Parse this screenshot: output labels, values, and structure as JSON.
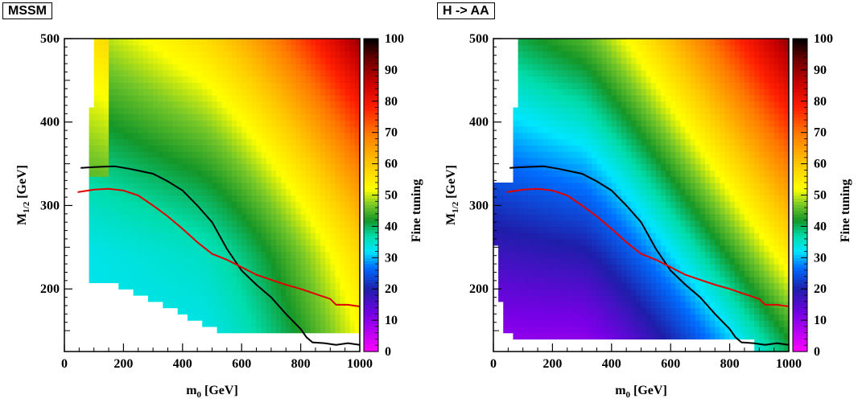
{
  "chart_data": [
    {
      "type": "heatmap",
      "tag": "MSSM",
      "xlabel": "m",
      "xlabel_sub": "0",
      "xlabel_unit": " [GeV]",
      "ylabel": "M",
      "ylabel_sub": "1/2",
      "ylabel_unit": " [GeV]",
      "xlim": [
        0,
        1000
      ],
      "ylim": [
        125,
        500
      ],
      "xticks": [
        0,
        200,
        400,
        600,
        800,
        1000
      ],
      "yticks": [
        200,
        300,
        400,
        500
      ],
      "colorbar_label": "Fine tuning",
      "colorbar_range": [
        0,
        100
      ],
      "colorbar_ticks": [
        0,
        10,
        20,
        30,
        40,
        50,
        60,
        70,
        80,
        90,
        100
      ],
      "heatmap_description": "Fine tuning minimum ~33 near m0 200-400, M1/2 200-260; increases to ~60 at large M1/2 and ~80-90 at m0~1000, M1/2~500",
      "series": [
        {
          "color": "#000000",
          "x": [
            55,
            100,
            170,
            220,
            260,
            300,
            350,
            400,
            450,
            500,
            550,
            600,
            650,
            700,
            750,
            800,
            820,
            840,
            880,
            920,
            960,
            1000
          ],
          "y": [
            345,
            346,
            347,
            344,
            341,
            338,
            329,
            318,
            300,
            280,
            248,
            222,
            205,
            190,
            170,
            152,
            142,
            136,
            135,
            133,
            135,
            133
          ]
        },
        {
          "color": "#e00000",
          "x": [
            45,
            100,
            150,
            200,
            250,
            300,
            350,
            400,
            450,
            500,
            550,
            600,
            650,
            700,
            750,
            800,
            850,
            900,
            920,
            960,
            1000
          ],
          "y": [
            316,
            319,
            320,
            318,
            312,
            300,
            287,
            272,
            256,
            242,
            235,
            226,
            217,
            211,
            205,
            200,
            194,
            188,
            181,
            181,
            179
          ]
        }
      ]
    },
    {
      "type": "heatmap",
      "tag": "H -> AA",
      "xlabel": "m",
      "xlabel_sub": "0",
      "xlabel_unit": " [GeV]",
      "ylabel": "M",
      "ylabel_sub": "1/2",
      "ylabel_unit": " [GeV]",
      "xlim": [
        0,
        1000
      ],
      "ylim": [
        125,
        500
      ],
      "xticks": [
        0,
        200,
        400,
        600,
        800,
        1000
      ],
      "yticks": [
        200,
        300,
        400,
        500
      ],
      "colorbar_label": "Fine tuning",
      "colorbar_range": [
        0,
        100
      ],
      "colorbar_ticks": [
        0,
        10,
        20,
        30,
        40,
        50,
        60,
        70,
        80,
        90,
        100
      ],
      "heatmap_description": "Fine tuning minimum ~8-12 near m0 50-200, M1/2 130-180 (purple); dark blue ~18-22 region up to M1/2~280; increases to ~60 at large M1/2 and ~80-90 at m0~1000, M1/2~500",
      "series": [
        {
          "color": "#000000",
          "x": [
            55,
            100,
            170,
            220,
            260,
            300,
            350,
            400,
            450,
            500,
            550,
            600,
            650,
            700,
            750,
            800,
            820,
            840,
            880,
            920,
            960,
            1000
          ],
          "y": [
            345,
            346,
            347,
            344,
            341,
            338,
            329,
            318,
            300,
            280,
            248,
            222,
            205,
            190,
            170,
            152,
            142,
            136,
            135,
            133,
            135,
            133
          ]
        },
        {
          "color": "#e00000",
          "x": [
            45,
            100,
            150,
            200,
            250,
            300,
            350,
            400,
            450,
            500,
            550,
            600,
            650,
            700,
            750,
            800,
            850,
            900,
            920,
            960,
            1000
          ],
          "y": [
            316,
            319,
            320,
            318,
            312,
            300,
            287,
            272,
            256,
            242,
            235,
            226,
            217,
            211,
            205,
            200,
            194,
            188,
            181,
            181,
            179
          ]
        }
      ]
    }
  ]
}
